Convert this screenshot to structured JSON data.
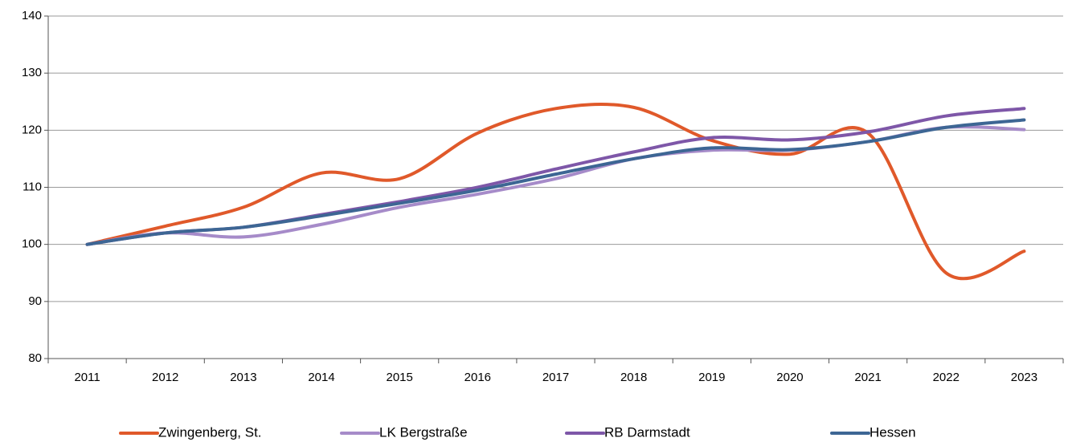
{
  "chart_data": {
    "type": "line",
    "categories": [
      "2011",
      "2012",
      "2013",
      "2014",
      "2015",
      "2016",
      "2017",
      "2018",
      "2019",
      "2020",
      "2021",
      "2022",
      "2023"
    ],
    "series": [
      {
        "name": "Zwingenberg, St.",
        "color": "#e0592a",
        "values": [
          100,
          103.2,
          106.5,
          112.5,
          111.5,
          119.5,
          123.8,
          124.0,
          118.2,
          115.8,
          119.5,
          95.0,
          98.8
        ]
      },
      {
        "name": "LK Bergstraße",
        "color": "#a68bc9",
        "values": [
          100,
          102.0,
          101.3,
          103.5,
          106.5,
          108.8,
          111.5,
          115.0,
          116.5,
          116.5,
          118.0,
          120.5,
          120.1
        ]
      },
      {
        "name": "RB Darmstadt",
        "color": "#7e57a8",
        "values": [
          100,
          102.0,
          103.0,
          105.2,
          107.5,
          110.0,
          113.2,
          116.2,
          118.7,
          118.3,
          119.7,
          122.5,
          123.8
        ]
      },
      {
        "name": "Hessen",
        "color": "#3d6694",
        "values": [
          100,
          102.0,
          103.0,
          105.0,
          107.2,
          109.5,
          112.3,
          115.0,
          116.9,
          116.6,
          118.0,
          120.5,
          121.8
        ]
      }
    ],
    "ylim": [
      80,
      140
    ],
    "yticks": [
      80,
      90,
      100,
      110,
      120,
      130,
      140
    ],
    "grid": true,
    "smooth": true,
    "legend": "bottom"
  }
}
